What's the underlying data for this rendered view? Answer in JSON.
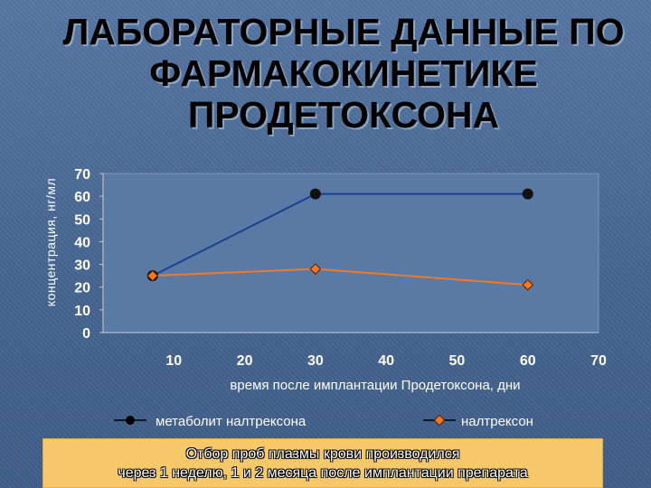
{
  "slide": {
    "title_lines": [
      "ЛАБОРАТОРНЫЕ ДАННЫЕ ПО",
      "ФАРМАКОКИНЕТИКЕ",
      "ПРОДЕТОКСОНА"
    ],
    "note_lines": [
      "Отбор проб плазмы крови производился",
      "через 1 неделю, 1 и 2 месяца после имплантации препарата"
    ]
  },
  "chart_data": {
    "type": "line",
    "ylabel": "концентрация, нг/мл",
    "xlabel": "время после имплантации Продетоксона, дни",
    "x": [
      7,
      30,
      60
    ],
    "xlim": [
      0,
      70
    ],
    "ylim": [
      0,
      70
    ],
    "xticks": [
      "10",
      "20",
      "30",
      "40",
      "50",
      "60",
      "70"
    ],
    "yticks": [
      "0",
      "10",
      "20",
      "30",
      "40",
      "50",
      "60",
      "70"
    ],
    "series": [
      {
        "name": "метаболит налтрексона",
        "values": [
          25,
          61,
          61
        ],
        "color": "#1f3d8f",
        "marker": "circle"
      },
      {
        "name": "налтрексон",
        "values": [
          25,
          28,
          21
        ],
        "color": "#f07a24",
        "marker": "diamond"
      }
    ],
    "legend": "bottom",
    "grid": false
  }
}
